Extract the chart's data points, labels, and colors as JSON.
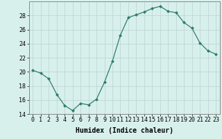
{
  "x": [
    0,
    1,
    2,
    3,
    4,
    5,
    6,
    7,
    8,
    9,
    10,
    11,
    12,
    13,
    14,
    15,
    16,
    17,
    18,
    19,
    20,
    21,
    22,
    23
  ],
  "y": [
    20.2,
    19.8,
    19.0,
    16.8,
    15.2,
    14.5,
    15.5,
    15.3,
    16.1,
    18.5,
    21.5,
    25.2,
    27.7,
    28.1,
    28.5,
    29.0,
    29.3,
    28.6,
    28.4,
    27.0,
    26.2,
    24.1,
    23.0,
    22.5
  ],
  "line_color": "#2e7d6e",
  "marker": "D",
  "marker_size": 2.0,
  "bg_color": "#d8f0ec",
  "grid_color": "#c0d8d4",
  "axis_color": "#888888",
  "xlabel": "Humidex (Indice chaleur)",
  "xlabel_fontsize": 7,
  "tick_fontsize": 6,
  "ylim": [
    14,
    30
  ],
  "yticks": [
    14,
    16,
    18,
    20,
    22,
    24,
    26,
    28
  ],
  "xlim": [
    -0.5,
    23.5
  ],
  "xticks": [
    0,
    1,
    2,
    3,
    4,
    5,
    6,
    7,
    8,
    9,
    10,
    11,
    12,
    13,
    14,
    15,
    16,
    17,
    18,
    19,
    20,
    21,
    22,
    23
  ]
}
